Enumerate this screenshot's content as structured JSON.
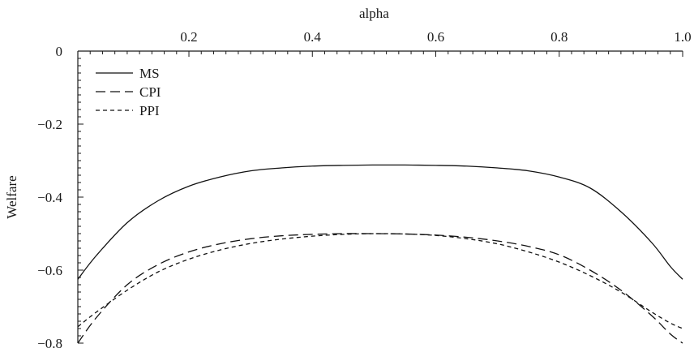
{
  "chart_data": {
    "type": "line",
    "xlabel": "alpha",
    "ylabel": "Welfare",
    "xlim": [
      0.02,
      1.0
    ],
    "ylim": [
      -0.8,
      0.0
    ],
    "x_ticks": [
      0.2,
      0.4,
      0.6,
      0.8,
      1.0
    ],
    "x_tick_labels": [
      "0.2",
      "0.4",
      "0.6",
      "0.8",
      "1.0"
    ],
    "y_ticks": [
      0.0,
      -0.2,
      -0.4,
      -0.6,
      -0.8
    ],
    "y_tick_labels": [
      "0",
      "−0.2",
      "−0.4",
      "−0.6",
      "−0.8"
    ],
    "grid": false,
    "legend_position": "top-left",
    "x": [
      0.02,
      0.05,
      0.1,
      0.15,
      0.2,
      0.25,
      0.3,
      0.35,
      0.4,
      0.45,
      0.5,
      0.55,
      0.6,
      0.65,
      0.7,
      0.75,
      0.8,
      0.85,
      0.9,
      0.95,
      0.98,
      1.0
    ],
    "series": [
      {
        "name": "MS",
        "dash": "solid",
        "values": [
          -0.625,
          -0.56,
          -0.47,
          -0.41,
          -0.37,
          -0.345,
          -0.328,
          -0.32,
          -0.315,
          -0.313,
          -0.312,
          -0.312,
          -0.313,
          -0.315,
          -0.32,
          -0.328,
          -0.345,
          -0.375,
          -0.44,
          -0.525,
          -0.59,
          -0.625
        ]
      },
      {
        "name": "CPI",
        "dash": "long-dash",
        "values": [
          -0.8,
          -0.73,
          -0.64,
          -0.585,
          -0.55,
          -0.528,
          -0.514,
          -0.506,
          -0.502,
          -0.5,
          -0.5,
          -0.501,
          -0.504,
          -0.51,
          -0.52,
          -0.535,
          -0.558,
          -0.6,
          -0.655,
          -0.725,
          -0.775,
          -0.8
        ]
      },
      {
        "name": "PPI",
        "dash": "short-dash",
        "values": [
          -0.755,
          -0.715,
          -0.655,
          -0.605,
          -0.57,
          -0.545,
          -0.527,
          -0.515,
          -0.507,
          -0.502,
          -0.5,
          -0.501,
          -0.505,
          -0.514,
          -0.528,
          -0.55,
          -0.578,
          -0.615,
          -0.66,
          -0.715,
          -0.745,
          -0.76
        ]
      }
    ]
  }
}
